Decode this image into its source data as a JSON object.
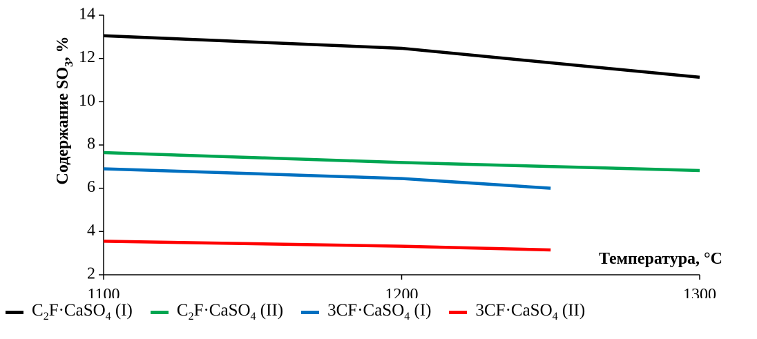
{
  "chart_data": {
    "type": "line",
    "xlabel": "Температура, °С",
    "ylabel": "Содержание SO3, %",
    "xlim": [
      1100,
      1300
    ],
    "ylim": [
      2,
      14
    ],
    "x_ticks": [
      "1100",
      "1200",
      "1300"
    ],
    "y_ticks": [
      "2",
      "4",
      "6",
      "8",
      "10",
      "12",
      "14"
    ],
    "grid": false,
    "legend_position": "bottom",
    "series": [
      {
        "name": "C2F·CaSO4 (I)",
        "color": "#000000",
        "x": [
          1100,
          1200,
          1300
        ],
        "y": [
          13.05,
          12.47,
          11.13
        ]
      },
      {
        "name": "C2F·CaSO4 (II)",
        "color": "#00a651",
        "x": [
          1100,
          1200,
          1300
        ],
        "y": [
          7.65,
          7.19,
          6.82
        ]
      },
      {
        "name": "3CF·CaSO4 (I)",
        "color": "#0070c0",
        "x": [
          1100,
          1200,
          1250
        ],
        "y": [
          6.9,
          6.45,
          6.0
        ]
      },
      {
        "name": "3CF·CaSO4 (II)",
        "color": "#ff0000",
        "x": [
          1100,
          1200,
          1250
        ],
        "y": [
          3.55,
          3.32,
          3.15
        ]
      }
    ]
  }
}
